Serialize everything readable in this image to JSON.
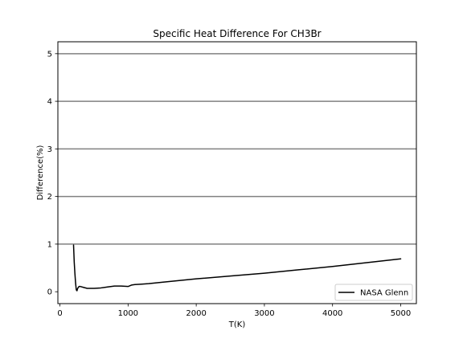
{
  "chart_data": {
    "type": "line",
    "title": "Specific Heat Difference For CH3Br",
    "xlabel": "T(K)",
    "ylabel": "Difference(%)",
    "xlim": [
      -30,
      5230
    ],
    "ylim": [
      -0.25,
      5.25
    ],
    "xticks": [
      0,
      1000,
      2000,
      3000,
      4000,
      5000
    ],
    "yticks": [
      0,
      1,
      2,
      3,
      4,
      5
    ],
    "hlines": [
      1,
      2,
      3,
      4,
      5
    ],
    "hline_color": "#808080",
    "legend_position": "lower-right",
    "series": [
      {
        "name": "NASA Glenn",
        "color": "#000000",
        "x": [
          200,
          210,
          220,
          230,
          240,
          250,
          260,
          280,
          300,
          350,
          400,
          450,
          500,
          600,
          700,
          800,
          900,
          1000,
          1050,
          1100,
          1200,
          1300,
          1500,
          2000,
          2500,
          3000,
          3500,
          4000,
          4500,
          5000
        ],
        "y": [
          0.98,
          0.62,
          0.38,
          0.18,
          0.04,
          0.02,
          0.07,
          0.11,
          0.11,
          0.09,
          0.07,
          0.07,
          0.07,
          0.08,
          0.1,
          0.12,
          0.12,
          0.11,
          0.14,
          0.15,
          0.16,
          0.17,
          0.2,
          0.27,
          0.33,
          0.39,
          0.46,
          0.53,
          0.61,
          0.69
        ]
      }
    ]
  }
}
